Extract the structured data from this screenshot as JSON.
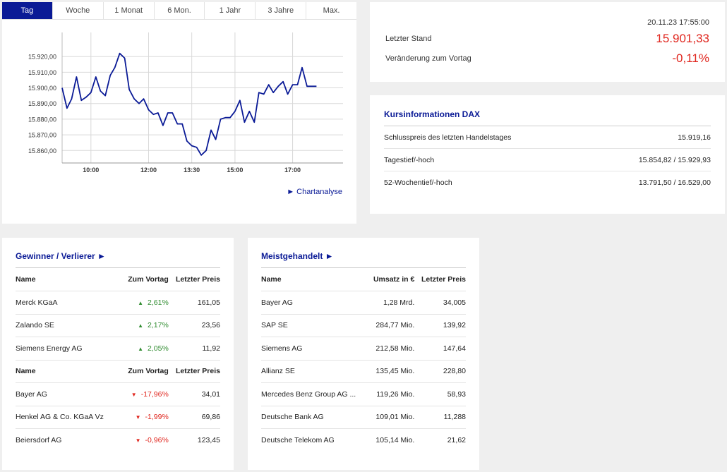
{
  "chart": {
    "tabs": [
      {
        "label": "Tag",
        "active": true
      },
      {
        "label": "Woche",
        "active": false
      },
      {
        "label": "1 Monat",
        "active": false
      },
      {
        "label": "6 Mon.",
        "active": false
      },
      {
        "label": "1 Jahr",
        "active": false
      },
      {
        "label": "3 Jahre",
        "active": false
      },
      {
        "label": "Max.",
        "active": false
      }
    ],
    "link_label": "Chartanalyse",
    "link_arrow": "►"
  },
  "chart_data": {
    "type": "line",
    "y_tick_labels": [
      "15.920,00",
      "15.910,00",
      "15.900,00",
      "15.890,00",
      "15.880,00",
      "15.870,00",
      "15.860,00"
    ],
    "y_ticks": [
      15920,
      15910,
      15900,
      15890,
      15880,
      15870,
      15860
    ],
    "ylim": [
      15852,
      15930
    ],
    "x_tick_labels": [
      "10:00",
      "12:00",
      "13:30",
      "15:00",
      "17:00"
    ],
    "x_ticks": [
      10.0,
      12.0,
      13.5,
      15.0,
      17.0
    ],
    "xlim": [
      9.0,
      18.75
    ],
    "grid": true,
    "color": "#0a1a96",
    "x": [
      9.0,
      9.17,
      9.33,
      9.5,
      9.67,
      9.83,
      10.0,
      10.17,
      10.33,
      10.5,
      10.67,
      10.83,
      11.0,
      11.17,
      11.33,
      11.5,
      11.67,
      11.83,
      12.0,
      12.17,
      12.33,
      12.5,
      12.67,
      12.83,
      13.0,
      13.17,
      13.33,
      13.5,
      13.67,
      13.83,
      14.0,
      14.17,
      14.33,
      14.5,
      14.67,
      14.83,
      15.0,
      15.17,
      15.33,
      15.5,
      15.67,
      15.83,
      16.0,
      16.17,
      16.33,
      16.5,
      16.67,
      16.83,
      17.0,
      17.17,
      17.33,
      17.5,
      17.67,
      17.83
    ],
    "y": [
      15900,
      15887,
      15893,
      15907,
      15892,
      15894,
      15897,
      15907,
      15898,
      15895,
      15908,
      15913,
      15922,
      15919,
      15899,
      15893,
      15890,
      15893,
      15886,
      15883,
      15884,
      15876,
      15884,
      15884,
      15877,
      15877,
      15866,
      15863,
      15862,
      15857,
      15860,
      15873,
      15867,
      15880,
      15881,
      15881,
      15885,
      15892,
      15878,
      15885,
      15878,
      15897,
      15896,
      15902,
      15897,
      15901,
      15904,
      15896,
      15902,
      15902,
      15913,
      15901,
      15901,
      15901
    ]
  },
  "quote": {
    "date": "20.11.23 17:55:00",
    "last_label": "Letzter Stand",
    "last_value": "15.901,33",
    "change_label": "Veränderung zum Vortag",
    "change_value": "-0,11%"
  },
  "info": {
    "title": "Kursinformationen DAX",
    "rows": [
      {
        "label": "Schlusspreis des letzten Handelstages",
        "value": "15.919,16"
      },
      {
        "label": "Tagestief/-hoch",
        "value": "15.854,82 / 15.929,93"
      },
      {
        "label": "52-Wochentief/-hoch",
        "value": "13.791,50 / 16.529,00"
      }
    ]
  },
  "gainers_losers": {
    "title": "Gewinner / Verlierer ►",
    "headers": {
      "name": "Name",
      "change": "Zum Vortag",
      "price": "Letzter Preis"
    },
    "gainers": [
      {
        "name": "Merck KGaA",
        "change": "2,61%",
        "price": "161,05",
        "dir": "up"
      },
      {
        "name": "Zalando SE",
        "change": "2,17%",
        "price": "23,56",
        "dir": "up"
      },
      {
        "name": "Siemens Energy AG",
        "change": "2,05%",
        "price": "11,92",
        "dir": "up"
      }
    ],
    "losers": [
      {
        "name": "Bayer AG",
        "change": "-17,96%",
        "price": "34,01",
        "dir": "down"
      },
      {
        "name": "Henkel AG & Co. KGaA Vz",
        "change": "-1,99%",
        "price": "69,86",
        "dir": "down"
      },
      {
        "name": "Beiersdorf AG",
        "change": "-0,96%",
        "price": "123,45",
        "dir": "down"
      }
    ]
  },
  "most_traded": {
    "title": "Meistgehandelt ►",
    "headers": {
      "name": "Name",
      "volume": "Umsatz in €",
      "price": "Letzter Preis"
    },
    "rows": [
      {
        "name": "Bayer AG",
        "volume": "1,28 Mrd.",
        "price": "34,005"
      },
      {
        "name": "SAP SE",
        "volume": "284,77 Mio.",
        "price": "139,92"
      },
      {
        "name": "Siemens AG",
        "volume": "212,58 Mio.",
        "price": "147,64"
      },
      {
        "name": "Allianz SE",
        "volume": "135,45 Mio.",
        "price": "228,80"
      },
      {
        "name": "Mercedes Benz Group AG ...",
        "volume": "119,26 Mio.",
        "price": "58,93"
      },
      {
        "name": "Deutsche Bank AG",
        "volume": "109,01 Mio.",
        "price": "11,288"
      },
      {
        "name": "Deutsche Telekom AG",
        "volume": "105,14 Mio.",
        "price": "21,62"
      }
    ]
  },
  "icons": {
    "up": "▲",
    "down": "▼"
  },
  "colors": {
    "accent": "#0a1a96",
    "positive": "#2e8b2e",
    "negative": "#e0261e"
  }
}
